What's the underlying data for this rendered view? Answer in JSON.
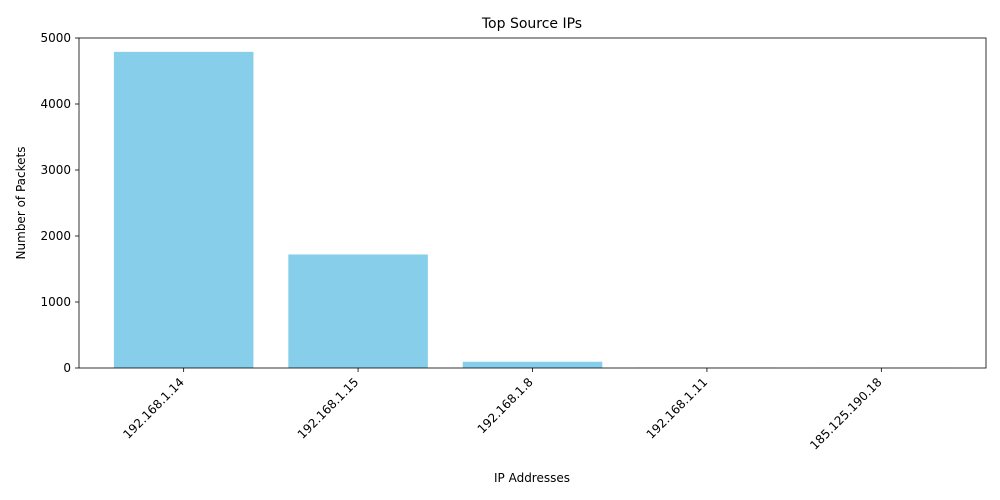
{
  "chart_data": {
    "type": "bar",
    "title": "Top Source IPs",
    "xlabel": "IP Addresses",
    "ylabel": "Number of Packets",
    "categories": [
      "192.168.1.14",
      "192.168.1.15",
      "192.168.1.8",
      "192.168.1.11",
      "185.125.190.18"
    ],
    "values": [
      4790,
      1720,
      95,
      4,
      2
    ],
    "ylim": [
      0,
      5000
    ],
    "yticks": [
      0,
      1000,
      2000,
      3000,
      4000,
      5000
    ],
    "grid": false,
    "legend": "none",
    "bar_color": "#87CEEB"
  }
}
